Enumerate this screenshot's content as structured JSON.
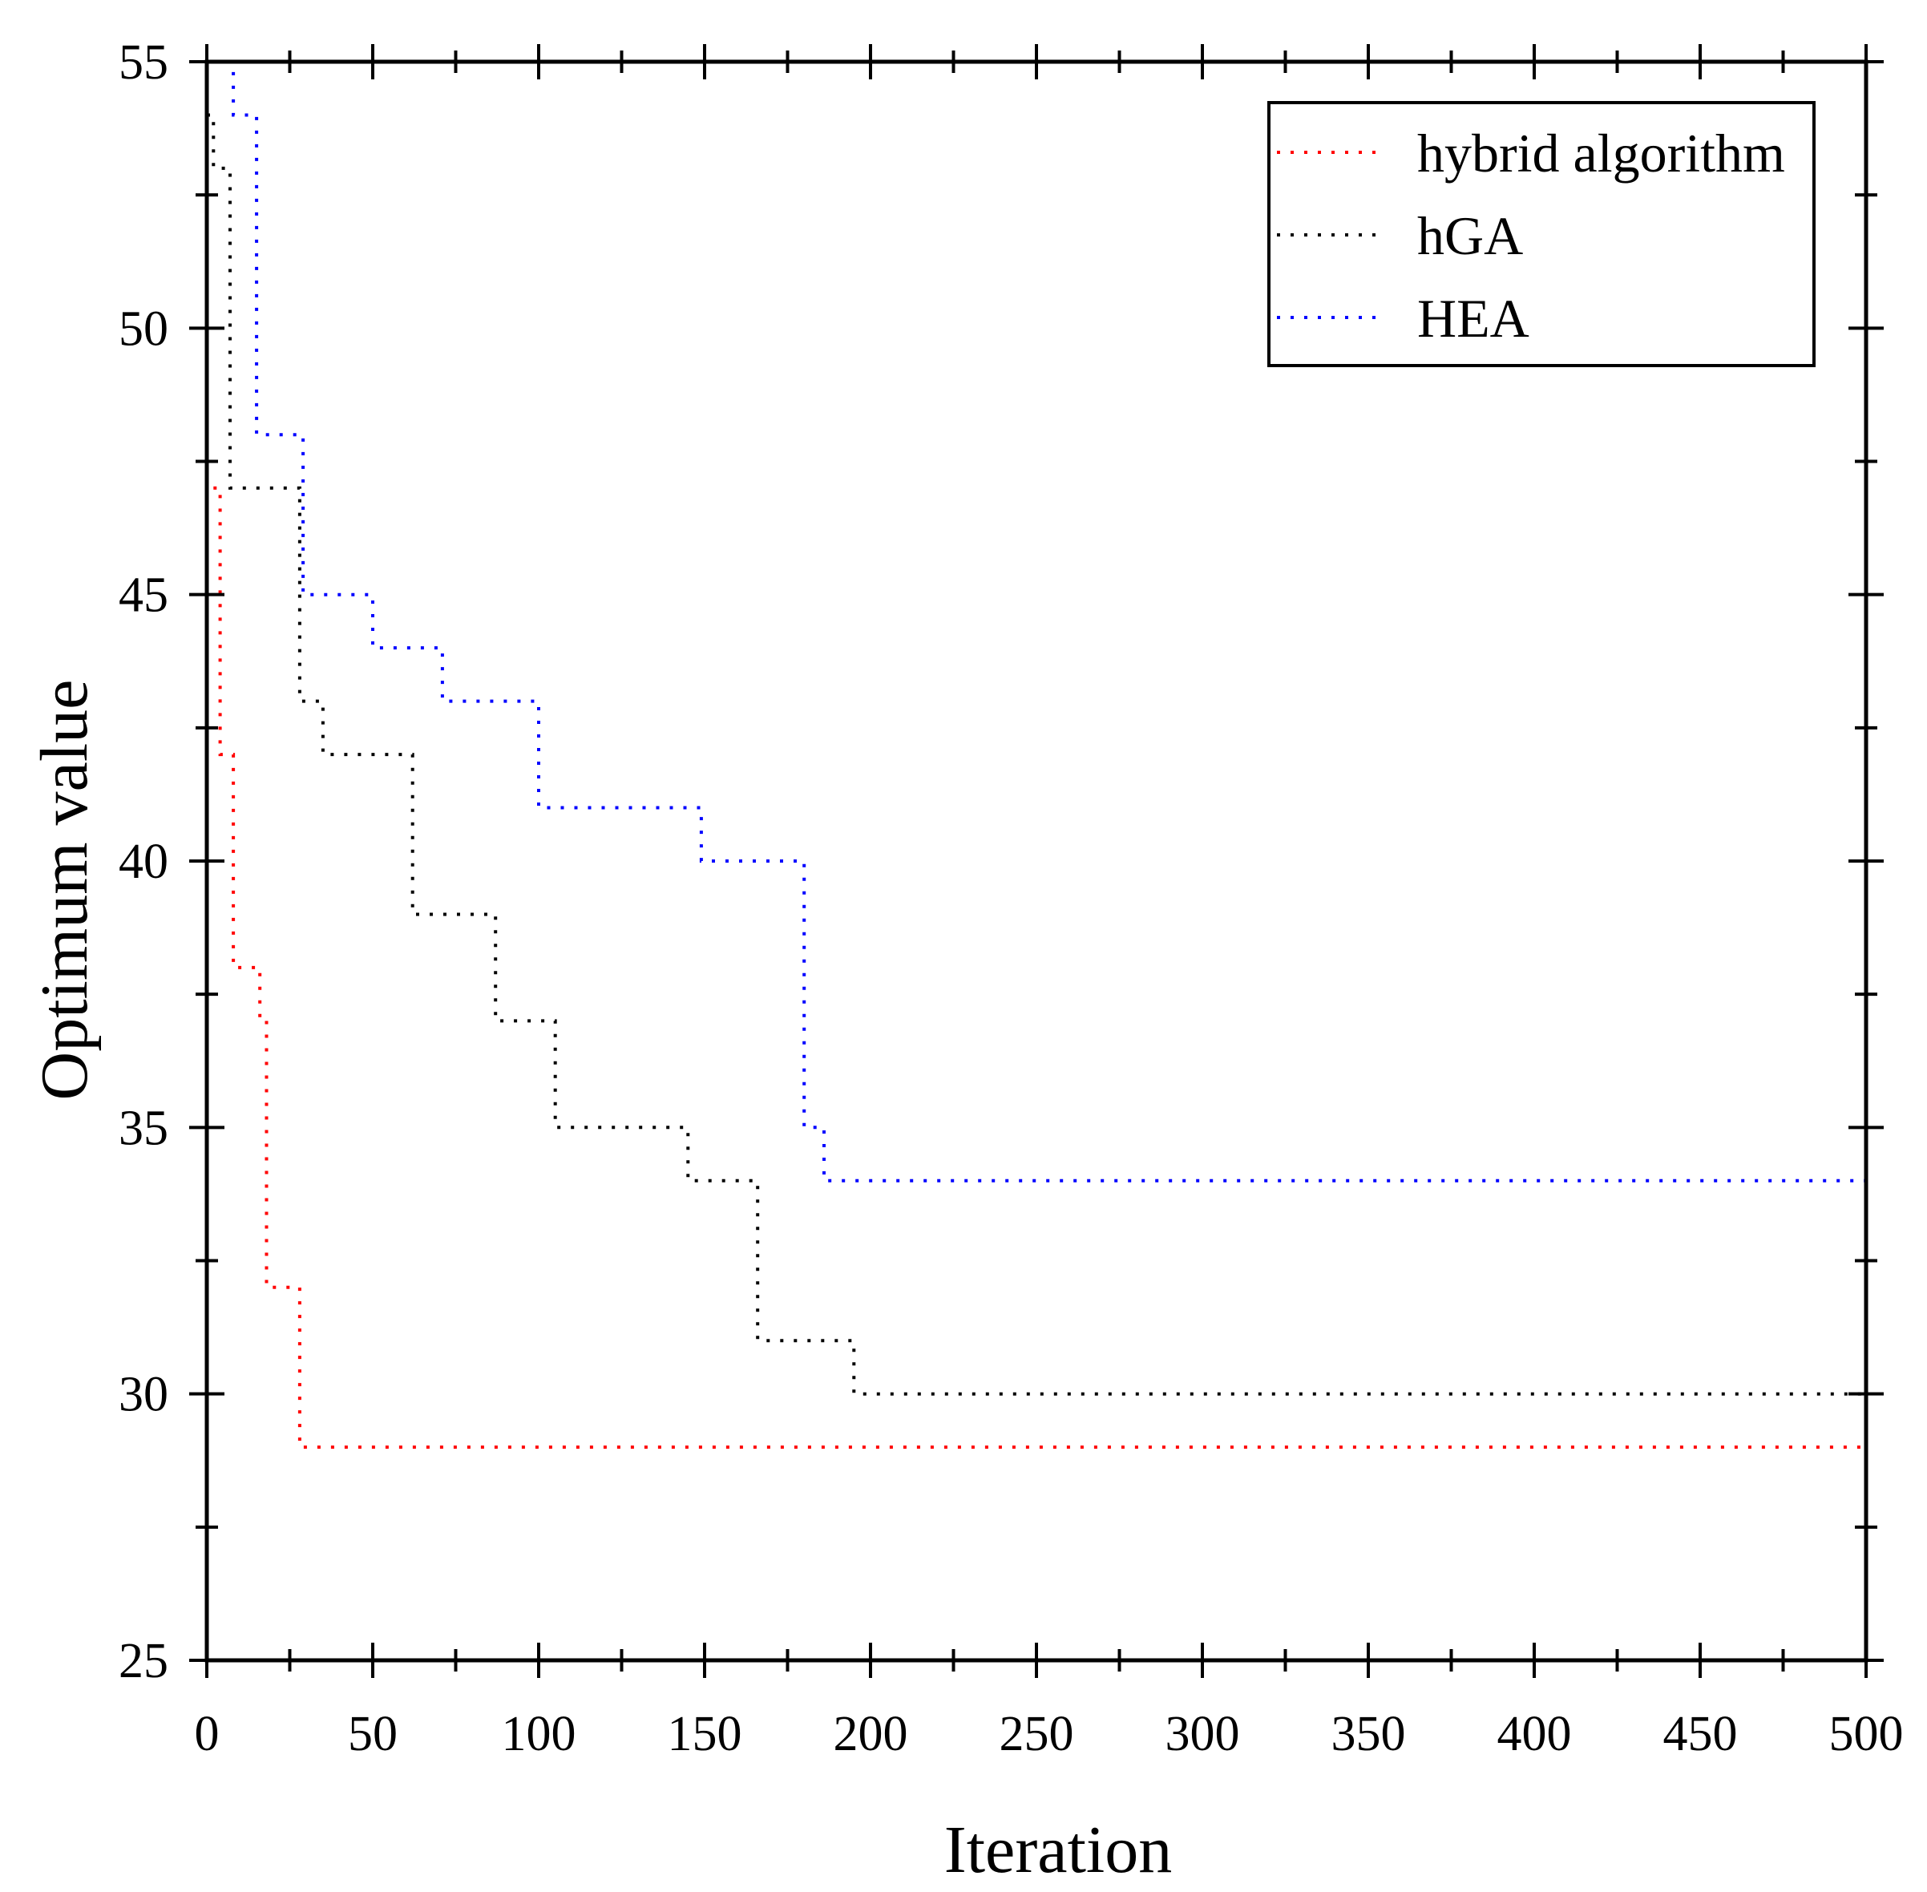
{
  "chart_data": {
    "type": "line",
    "title": "",
    "xlabel": "Iteration",
    "ylabel": "Optimum value",
    "xlim": [
      0,
      500
    ],
    "ylim": [
      25,
      55
    ],
    "x_major_ticks": [
      0,
      50,
      100,
      150,
      200,
      250,
      300,
      350,
      400,
      450,
      500
    ],
    "x_tick_labels": [
      "0",
      "50",
      "100",
      "150",
      "200",
      "250",
      "300",
      "350",
      "400",
      "450",
      "500"
    ],
    "y_major_ticks": [
      25,
      30,
      35,
      40,
      45,
      50,
      55
    ],
    "y_tick_labels": [
      "25",
      "30",
      "35",
      "40",
      "45",
      "50",
      "55"
    ],
    "x_minor_step": 25,
    "y_minor_step": 2.5,
    "grid": false,
    "legend_position": "top-right",
    "line_style": "dotted",
    "series": [
      {
        "name": "hybrid algorithm",
        "color": "#ff0000",
        "points": [
          [
            2,
            47
          ],
          [
            4,
            47
          ],
          [
            4,
            42
          ],
          [
            8,
            42
          ],
          [
            8,
            38
          ],
          [
            16,
            38
          ],
          [
            16,
            37
          ],
          [
            18,
            37
          ],
          [
            18,
            32
          ],
          [
            28,
            32
          ],
          [
            28,
            29
          ],
          [
            500,
            29
          ]
        ]
      },
      {
        "name": "hGA",
        "color": "#000000",
        "points": [
          [
            0,
            54
          ],
          [
            2,
            54
          ],
          [
            2,
            53
          ],
          [
            7,
            53
          ],
          [
            7,
            47
          ],
          [
            28,
            47
          ],
          [
            28,
            43
          ],
          [
            35,
            43
          ],
          [
            35,
            42
          ],
          [
            62,
            42
          ],
          [
            62,
            39
          ],
          [
            87,
            39
          ],
          [
            87,
            37
          ],
          [
            105,
            37
          ],
          [
            105,
            35
          ],
          [
            145,
            35
          ],
          [
            145,
            34
          ],
          [
            166,
            34
          ],
          [
            166,
            31
          ],
          [
            195,
            31
          ],
          [
            195,
            30
          ],
          [
            500,
            30
          ]
        ]
      },
      {
        "name": "HEA",
        "color": "#0000ff",
        "points": [
          [
            7,
            55
          ],
          [
            8,
            55
          ],
          [
            8,
            54
          ],
          [
            15,
            54
          ],
          [
            15,
            48
          ],
          [
            29,
            48
          ],
          [
            29,
            45
          ],
          [
            50,
            45
          ],
          [
            50,
            44
          ],
          [
            71,
            44
          ],
          [
            71,
            43
          ],
          [
            100,
            43
          ],
          [
            100,
            41
          ],
          [
            149,
            41
          ],
          [
            149,
            40
          ],
          [
            180,
            40
          ],
          [
            180,
            35
          ],
          [
            186,
            35
          ],
          [
            186,
            34
          ],
          [
            500,
            34
          ]
        ]
      }
    ]
  }
}
